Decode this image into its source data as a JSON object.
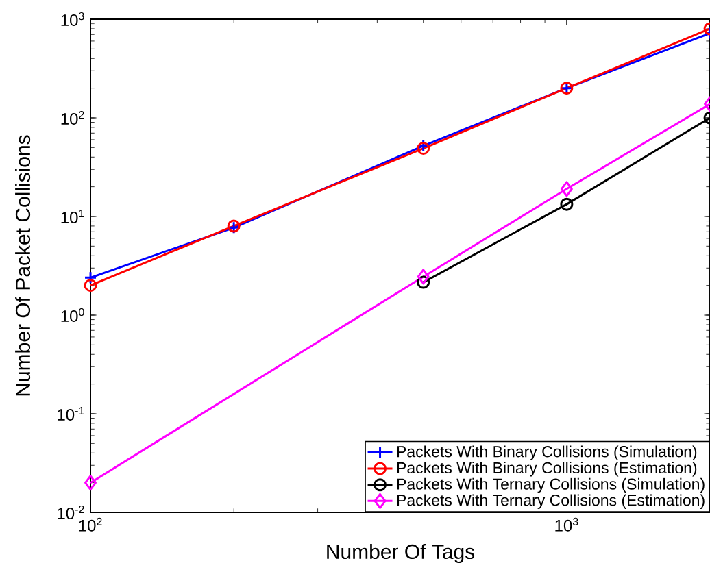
{
  "chart_data": {
    "type": "line",
    "xlabel": "Number Of Tags",
    "ylabel": "Number Of Packet Collisions",
    "log": "xy",
    "xlim": [
      100,
      2000
    ],
    "ylim": [
      0.01,
      1000
    ],
    "xticks": [
      {
        "value": 100,
        "label": "10$^{2}$"
      },
      {
        "value": 1000,
        "label": "10$^{3}$"
      }
    ],
    "yticks": [
      {
        "value": 0.01,
        "label": "10$^{-2}$"
      },
      {
        "value": 0.1,
        "label": "10$^{-1}$"
      },
      {
        "value": 1,
        "label": "10$^{0}$"
      },
      {
        "value": 10,
        "label": "10$^{1}$"
      },
      {
        "value": 100,
        "label": "10$^{2}$"
      },
      {
        "value": 1000,
        "label": "10$^{3}$"
      }
    ],
    "legend": "bottom right",
    "grid": false,
    "series": [
      {
        "name": "Packets With Binary Collisions (Simulation)",
        "color": "#0000ff",
        "marker": "cross",
        "x": [
          100,
          200,
          500,
          1000,
          2000
        ],
        "values": [
          2.4,
          7.7,
          52,
          200,
          720
        ]
      },
      {
        "name": "Packets With Binary Collisions (Estimation)",
        "color": "#ff0000",
        "marker": "circle",
        "x": [
          100,
          200,
          500,
          1000,
          2000
        ],
        "values": [
          2.0,
          8.0,
          49,
          200,
          800
        ]
      },
      {
        "name": "Packets With Ternary Collisions (Simulation)",
        "color": "#000000",
        "marker": "circle",
        "x": [
          500,
          1000,
          2000
        ],
        "values": [
          2.15,
          13.3,
          100
        ]
      },
      {
        "name": "Packets With Ternary Collisions (Estimation)",
        "color": "#ff00ff",
        "marker": "diamond",
        "x": [
          100,
          500,
          1000,
          2000
        ],
        "values": [
          0.02,
          2.45,
          19,
          138
        ]
      }
    ]
  }
}
